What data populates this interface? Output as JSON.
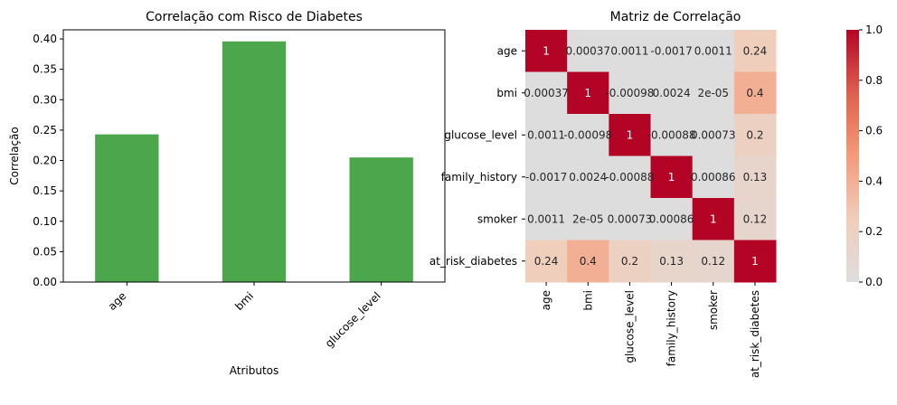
{
  "chart_data": [
    {
      "type": "bar",
      "title": "Correlação com Risco de Diabetes",
      "xlabel": "Atributos",
      "ylabel": "Correlação",
      "categories": [
        "age",
        "bmi",
        "glucose_level"
      ],
      "values": [
        0.243,
        0.396,
        0.205
      ],
      "ylim": [
        0,
        0.415
      ],
      "yticks": [
        "0.00",
        "0.05",
        "0.10",
        "0.15",
        "0.20",
        "0.25",
        "0.30",
        "0.35",
        "0.40"
      ],
      "bar_color": "#4ca64c",
      "grid": false,
      "legend": "none"
    },
    {
      "type": "heatmap",
      "title": "Matriz de Correlação",
      "labels": [
        "age",
        "bmi",
        "glucose_level",
        "family_history",
        "smoker",
        "at_risk_diabetes"
      ],
      "matrix": [
        [
          1,
          0.00037,
          0.0011,
          -0.0017,
          0.0011,
          0.24
        ],
        [
          0.00037,
          1,
          -0.00098,
          0.0024,
          2e-05,
          0.4
        ],
        [
          0.0011,
          -0.00098,
          1,
          -0.00088,
          0.00073,
          0.2
        ],
        [
          -0.0017,
          0.0024,
          -0.00088,
          1,
          0.00086,
          0.13
        ],
        [
          0.0011,
          2e-05,
          0.00073,
          0.00086,
          1,
          0.12
        ],
        [
          0.24,
          0.4,
          0.2,
          0.13,
          0.12,
          1
        ]
      ],
      "annotations": [
        [
          "1",
          "0.00037",
          "0.0011",
          "-0.0017",
          "0.0011",
          "0.24"
        ],
        [
          "0.00037",
          "1",
          "-0.00098",
          "0.0024",
          "2e-05",
          "0.4"
        ],
        [
          "0.0011",
          "-0.00098",
          "1",
          "-0.00088",
          "0.00073",
          "0.2"
        ],
        [
          "-0.0017",
          "0.0024",
          "-0.00088",
          "1",
          "0.00086",
          "0.13"
        ],
        [
          "0.0011",
          "2e-05",
          "0.00073",
          "0.00086",
          "1",
          "0.12"
        ],
        [
          "0.24",
          "0.4",
          "0.2",
          "0.13",
          "0.12",
          "1"
        ]
      ],
      "colorscale": "coolwarm centered at 0",
      "colorbar": {
        "range": [
          0,
          1
        ],
        "ticks": [
          "0.0",
          "0.2",
          "0.4",
          "0.6",
          "0.8",
          "1.0"
        ]
      }
    }
  ]
}
